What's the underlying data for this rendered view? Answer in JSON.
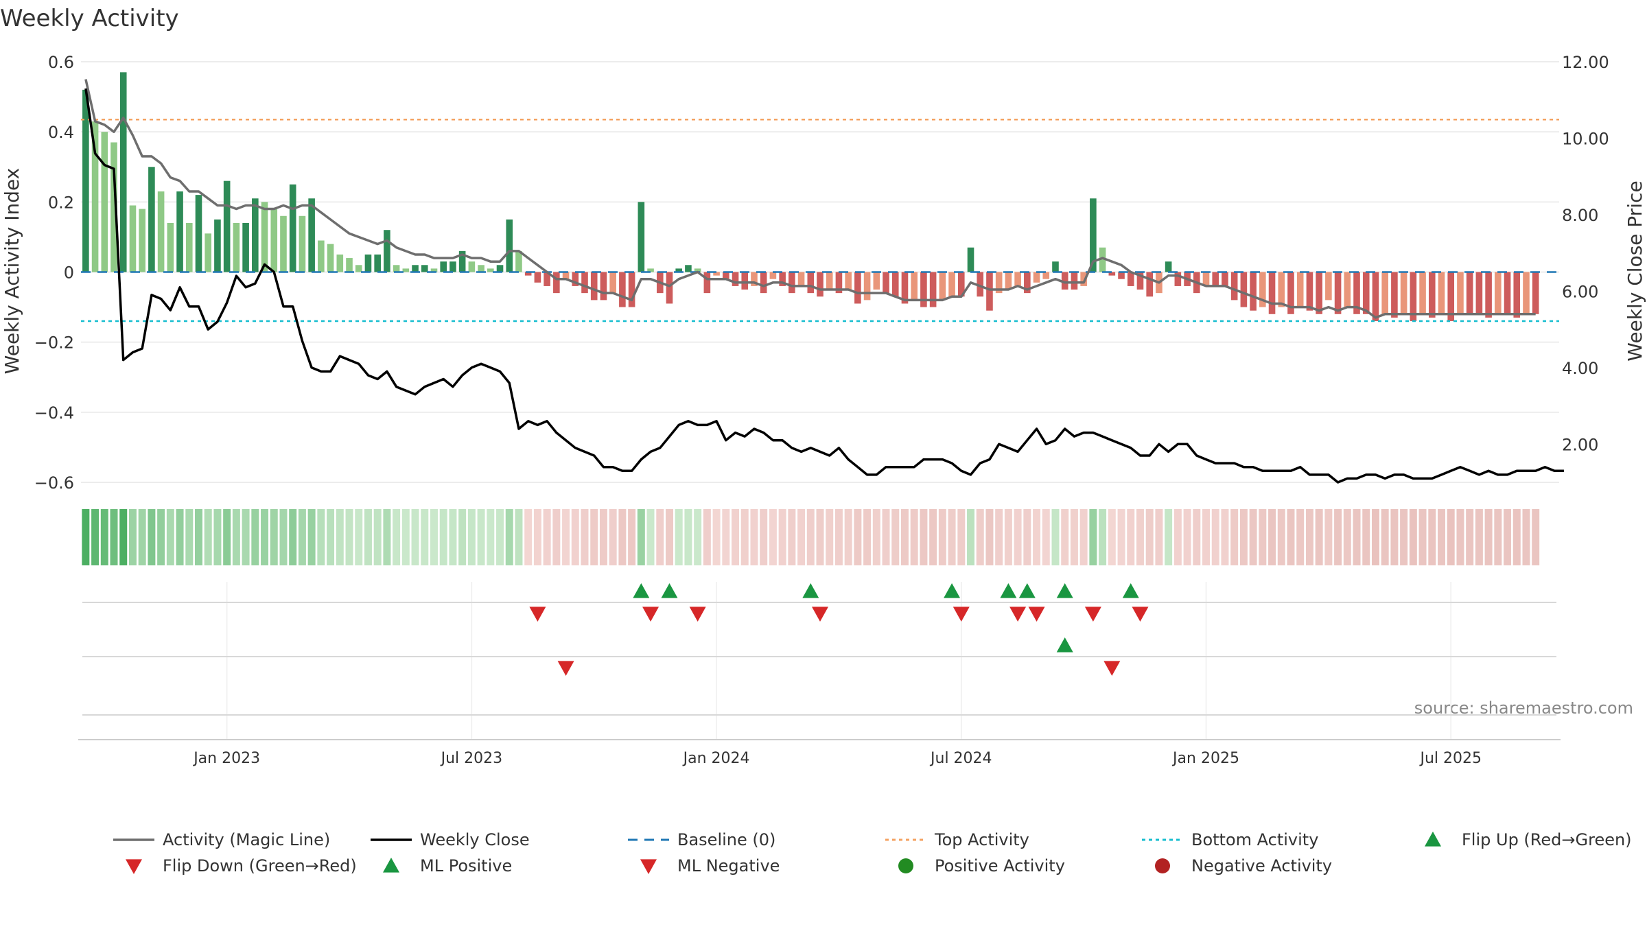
{
  "chart_data": {
    "type": "bar",
    "title": "Weekly Activity",
    "ylabel_left": "Weekly Activity Index",
    "ylabel_right": "Weekly Close Price",
    "ylim_left": [
      -0.6,
      0.6
    ],
    "yticks_left": [
      0.6,
      0.4,
      0.2,
      0,
      -0.2,
      -0.4,
      -0.6
    ],
    "ytick_labels_left": [
      "0.6",
      "0.4",
      "0.2",
      "0",
      "−0.2",
      "−0.4",
      "−0.6"
    ],
    "ylim_right": [
      1.0,
      12.0
    ],
    "yticks_right": [
      12,
      10,
      8,
      6,
      4,
      2
    ],
    "ytick_labels_right": [
      "12.00",
      "10.00",
      "8.00",
      "6.00",
      "4.00",
      "2.00"
    ],
    "x_tick_labels": [
      "Jan 2023",
      "Jul 2023",
      "Jan 2024",
      "Jul 2024",
      "Jan 2025",
      "Jul 2025"
    ],
    "x_tick_weeks": [
      15,
      41,
      67,
      93,
      119,
      145
    ],
    "num_weeks": 157,
    "top_activity": 0.435,
    "bottom_activity": -0.14,
    "baseline": 0,
    "source": "source: sharemaestro.com",
    "series": [
      {
        "name": "Weekly Activity",
        "values": [
          0.52,
          0.43,
          0.4,
          0.37,
          0.57,
          0.19,
          0.18,
          0.3,
          0.23,
          0.14,
          0.23,
          0.14,
          0.22,
          0.11,
          0.15,
          0.26,
          0.14,
          0.14,
          0.21,
          0.2,
          0.18,
          0.16,
          0.25,
          0.16,
          0.21,
          0.09,
          0.08,
          0.05,
          0.04,
          0.02,
          0.05,
          0.05,
          0.12,
          0.02,
          0.01,
          0.02,
          0.02,
          0.01,
          0.03,
          0.03,
          0.06,
          0.03,
          0.02,
          0.01,
          0.02,
          0.15,
          0.06,
          -0.01,
          -0.03,
          -0.04,
          -0.06,
          -0.02,
          -0.04,
          -0.06,
          -0.08,
          -0.08,
          -0.06,
          -0.1,
          -0.1,
          0.2,
          0.01,
          -0.06,
          -0.09,
          0.01,
          0.02,
          0.01,
          -0.06,
          -0.01,
          -0.02,
          -0.04,
          -0.05,
          -0.04,
          -0.06,
          -0.02,
          -0.04,
          -0.06,
          -0.04,
          -0.06,
          -0.07,
          -0.05,
          -0.06,
          -0.05,
          -0.09,
          -0.08,
          -0.05,
          -0.06,
          -0.07,
          -0.09,
          -0.08,
          -0.1,
          -0.1,
          -0.08,
          -0.07,
          -0.07,
          0.07,
          -0.07,
          -0.11,
          -0.06,
          -0.05,
          -0.04,
          -0.06,
          -0.03,
          -0.02,
          0.03,
          -0.05,
          -0.05,
          -0.04,
          0.21,
          0.07,
          -0.01,
          -0.02,
          -0.04,
          -0.05,
          -0.07,
          -0.06,
          0.03,
          -0.04,
          -0.04,
          -0.06,
          -0.04,
          -0.04,
          -0.04,
          -0.08,
          -0.1,
          -0.11,
          -0.1,
          -0.12,
          -0.1,
          -0.12,
          -0.1,
          -0.11,
          -0.12,
          -0.08,
          -0.12,
          -0.1,
          -0.12,
          -0.12,
          -0.14,
          -0.12,
          -0.13,
          -0.12,
          -0.14,
          -0.12,
          -0.13,
          -0.12,
          -0.14,
          -0.12,
          -0.12,
          -0.12,
          -0.13,
          -0.12,
          -0.12,
          -0.13,
          -0.12,
          -0.12
        ]
      },
      {
        "name": "Activity (Magic Line)",
        "values": [
          0.55,
          0.43,
          0.42,
          0.4,
          0.44,
          0.39,
          0.33,
          0.33,
          0.31,
          0.27,
          0.26,
          0.23,
          0.23,
          0.21,
          0.19,
          0.19,
          0.18,
          0.19,
          0.19,
          0.18,
          0.18,
          0.19,
          0.18,
          0.19,
          0.19,
          0.17,
          0.15,
          0.13,
          0.11,
          0.1,
          0.09,
          0.08,
          0.09,
          0.07,
          0.06,
          0.05,
          0.05,
          0.04,
          0.04,
          0.04,
          0.05,
          0.04,
          0.04,
          0.03,
          0.03,
          0.06,
          0.06,
          0.04,
          0.02,
          0.0,
          -0.02,
          -0.02,
          -0.03,
          -0.04,
          -0.05,
          -0.06,
          -0.06,
          -0.07,
          -0.08,
          -0.02,
          -0.02,
          -0.03,
          -0.04,
          -0.02,
          -0.01,
          0.0,
          -0.02,
          -0.02,
          -0.02,
          -0.03,
          -0.03,
          -0.03,
          -0.04,
          -0.03,
          -0.03,
          -0.04,
          -0.04,
          -0.04,
          -0.05,
          -0.05,
          -0.05,
          -0.05,
          -0.06,
          -0.06,
          -0.06,
          -0.06,
          -0.07,
          -0.08,
          -0.08,
          -0.08,
          -0.08,
          -0.08,
          -0.07,
          -0.07,
          -0.03,
          -0.04,
          -0.05,
          -0.05,
          -0.05,
          -0.04,
          -0.05,
          -0.04,
          -0.03,
          -0.02,
          -0.03,
          -0.03,
          -0.03,
          0.03,
          0.04,
          0.03,
          0.02,
          0.0,
          -0.01,
          -0.02,
          -0.03,
          -0.01,
          -0.01,
          -0.02,
          -0.03,
          -0.04,
          -0.04,
          -0.04,
          -0.05,
          -0.06,
          -0.07,
          -0.08,
          -0.09,
          -0.09,
          -0.1,
          -0.1,
          -0.1,
          -0.11,
          -0.1,
          -0.11,
          -0.1,
          -0.1,
          -0.11,
          -0.13,
          -0.12,
          -0.12,
          -0.12,
          -0.12,
          -0.12,
          -0.12,
          -0.12,
          -0.12,
          -0.12,
          -0.12,
          -0.12,
          -0.12,
          -0.12,
          -0.12,
          -0.12,
          -0.12,
          -0.12
        ]
      },
      {
        "name": "Weekly Close",
        "values": [
          11.3,
          9.6,
          9.3,
          9.2,
          4.2,
          4.4,
          4.5,
          5.9,
          5.8,
          5.5,
          6.1,
          5.6,
          5.6,
          5.0,
          5.2,
          5.7,
          6.4,
          6.1,
          6.2,
          6.7,
          6.5,
          5.6,
          5.6,
          4.7,
          4.0,
          3.9,
          3.9,
          4.3,
          4.2,
          4.1,
          3.8,
          3.7,
          3.9,
          3.5,
          3.4,
          3.3,
          3.5,
          3.6,
          3.7,
          3.5,
          3.8,
          4.0,
          4.1,
          4.0,
          3.9,
          3.6,
          2.4,
          2.6,
          2.5,
          2.6,
          2.3,
          2.1,
          1.9,
          1.8,
          1.7,
          1.4,
          1.4,
          1.3,
          1.3,
          1.6,
          1.8,
          1.9,
          2.2,
          2.5,
          2.6,
          2.5,
          2.5,
          2.6,
          2.1,
          2.3,
          2.2,
          2.4,
          2.3,
          2.1,
          2.1,
          1.9,
          1.8,
          1.9,
          1.8,
          1.7,
          1.9,
          1.6,
          1.4,
          1.2,
          1.2,
          1.4,
          1.4,
          1.4,
          1.4,
          1.6,
          1.6,
          1.6,
          1.5,
          1.3,
          1.2,
          1.5,
          1.6,
          2.0,
          1.9,
          1.8,
          2.1,
          2.4,
          2.0,
          2.1,
          2.4,
          2.2,
          2.3,
          2.3,
          2.2,
          2.1,
          2.0,
          1.9,
          1.7,
          1.7,
          2.0,
          1.8,
          2.0,
          2.0,
          1.7,
          1.6,
          1.5,
          1.5,
          1.5,
          1.4,
          1.4,
          1.3,
          1.3,
          1.3,
          1.3,
          1.4,
          1.2,
          1.2,
          1.2,
          1.0,
          1.1,
          1.1,
          1.2,
          1.2,
          1.1,
          1.2,
          1.2,
          1.1,
          1.1,
          1.1,
          1.2,
          1.3,
          1.4,
          1.3,
          1.2,
          1.3,
          1.2,
          1.2,
          1.3,
          1.3,
          1.3,
          1.4,
          1.3,
          1.3
        ]
      }
    ],
    "signal_rows": [
      {
        "row": 1,
        "kind": "up",
        "label": "Flip Up (Red→Green)",
        "weeks": [
          59,
          62,
          77,
          92,
          98,
          100,
          104,
          111
        ]
      },
      {
        "row": 1,
        "kind": "down",
        "label": "Flip Down (Green→Red)",
        "weeks": [
          48,
          60,
          65,
          78,
          93,
          99,
          101,
          107,
          112
        ]
      },
      {
        "row": 2,
        "kind": "up",
        "label": "ML Positive",
        "weeks": [
          104
        ]
      },
      {
        "row": 2,
        "kind": "down",
        "label": "ML Negative",
        "weeks": [
          51,
          109
        ]
      }
    ],
    "legend": [
      {
        "label": "Activity (Magic Line)",
        "style": "line",
        "color": "#6e6e6e"
      },
      {
        "label": "Weekly Close",
        "style": "line",
        "color": "#000000"
      },
      {
        "label": "Baseline (0)",
        "style": "dash",
        "color": "#1f77b4"
      },
      {
        "label": "Top Activity",
        "style": "dot",
        "color": "#f4a261"
      },
      {
        "label": "Bottom Activity",
        "style": "dot",
        "color": "#17becf"
      },
      {
        "label": "Flip Up (Red→Green)",
        "style": "tri-up",
        "color": "#1a9641"
      },
      {
        "label": "Flip Down (Green→Red)",
        "style": "tri-down",
        "color": "#d62728"
      },
      {
        "label": "ML Positive",
        "style": "tri-up",
        "color": "#1a9641"
      },
      {
        "label": "ML Negative",
        "style": "tri-down",
        "color": "#d62728"
      },
      {
        "label": "Positive Activity",
        "style": "dot-circle",
        "color": "#228b22"
      },
      {
        "label": "Negative Activity",
        "style": "dot-circle",
        "color": "#b22222"
      }
    ],
    "colors": {
      "pos_strong": "#2e8b57",
      "pos_light": "#8fc986",
      "neg_strong": "#cd5c5c",
      "neg_light": "#e9967a",
      "magic_line": "#6e6e6e",
      "close": "#000000",
      "baseline": "#1f77b4",
      "top": "#f4a261",
      "bottom": "#17becf",
      "grid": "#e6e6e6"
    }
  }
}
